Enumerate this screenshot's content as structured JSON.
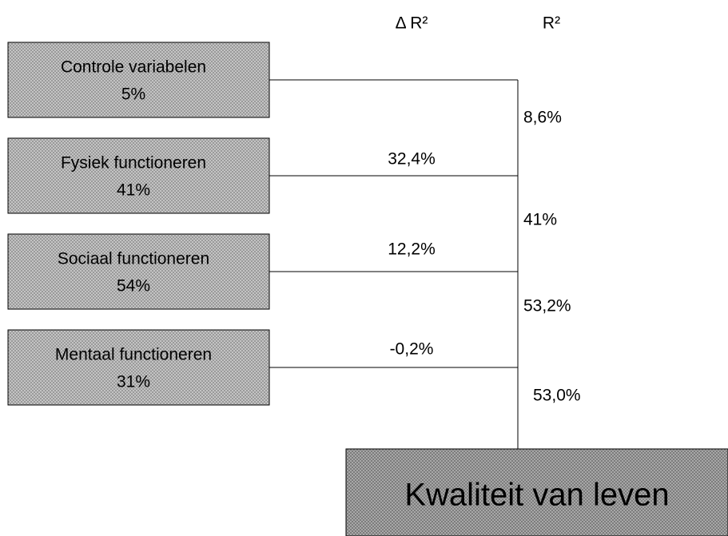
{
  "headers": {
    "delta": "Δ R²",
    "r2": "R²"
  },
  "predictors": [
    {
      "label": "Controle variabelen",
      "value": "5%"
    },
    {
      "label": "Fysiek functioneren",
      "value": "41%"
    },
    {
      "label": "Sociaal functioneren",
      "value": "54%"
    },
    {
      "label": "Mentaal functioneren",
      "value": "31%"
    }
  ],
  "delta_r2": [
    "32,4%",
    "12,2%",
    "-0,2%"
  ],
  "r2": [
    "8,6%",
    "41%",
    "53,2%",
    "53,0%"
  ],
  "outcome": {
    "label": "Kwaliteit van leven"
  }
}
